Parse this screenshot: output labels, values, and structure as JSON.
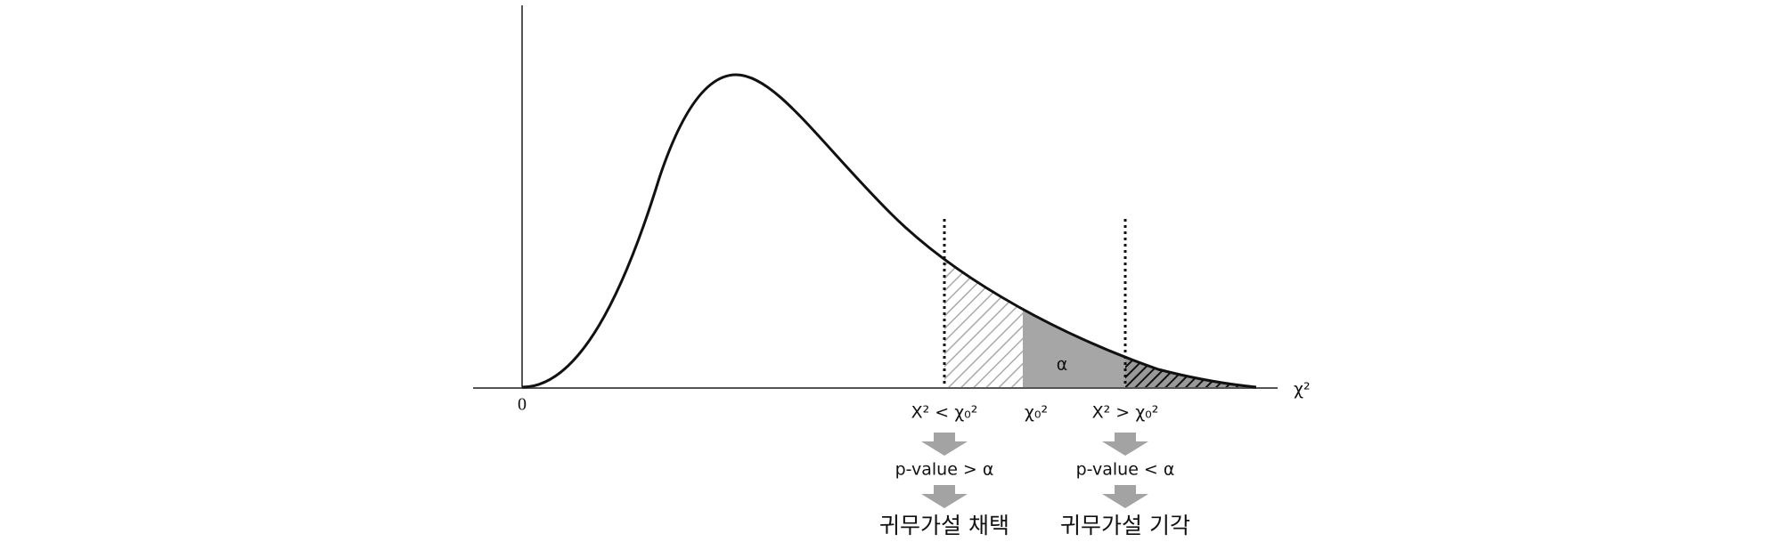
{
  "axis": {
    "origin": "0",
    "x_label": "χ²"
  },
  "region_label": "α",
  "critical_value": "χ₀²",
  "outcomes": [
    {
      "condition": "X² < χ₀²",
      "p_value": "p-value > α",
      "decision": "귀무가설 채택"
    },
    {
      "condition": "X² > χ₀²",
      "p_value": "p-value < α",
      "decision": "귀무가설 기각"
    }
  ]
}
